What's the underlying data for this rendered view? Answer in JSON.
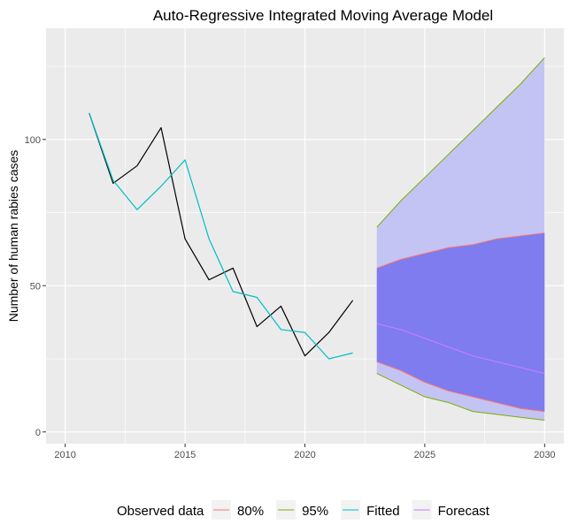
{
  "chart_data": {
    "type": "line",
    "title": "Auto-Regressive Integrated Moving Average Model",
    "xlabel": "",
    "ylabel": "Number of human rabies cases",
    "xlim": [
      2009.2,
      2030.8
    ],
    "ylim": [
      -4,
      138
    ],
    "x_ticks": [
      2010,
      2015,
      2020,
      2025,
      2030
    ],
    "y_ticks": [
      0,
      50,
      100
    ],
    "grid": true,
    "legend_position": "bottom",
    "legend_title": "Observed data",
    "legend_entries": [
      {
        "label": "80%",
        "color": "#f8766d"
      },
      {
        "label": "95%",
        "color": "#7cae00"
      },
      {
        "label": "Fitted",
        "color": "#00bfc4"
      },
      {
        "label": "Forecast",
        "color": "#c77cff"
      }
    ],
    "colors": {
      "observed": "#000000",
      "band95_fill": "#c3c3f4",
      "band80_fill": "#7e7cee",
      "band80_edge": "#f8766d",
      "band95_edge": "#7cae00",
      "fitted": "#00bfc4",
      "forecast": "#c77cff",
      "panel": "#ebebeb",
      "grid": "#ffffff"
    },
    "series": [
      {
        "name": "Observed data",
        "x": [
          2011,
          2012,
          2013,
          2014,
          2015,
          2016,
          2017,
          2018,
          2019,
          2020,
          2021,
          2022
        ],
        "values": [
          109,
          85,
          91,
          104,
          66,
          52,
          56,
          36,
          43,
          26,
          34,
          45
        ]
      },
      {
        "name": "Fitted",
        "x": [
          2011,
          2012,
          2013,
          2014,
          2015,
          2016,
          2017,
          2018,
          2019,
          2020,
          2021,
          2022
        ],
        "values": [
          109,
          86,
          76,
          84,
          93,
          66,
          48,
          46,
          35,
          34,
          25,
          27
        ]
      },
      {
        "name": "Forecast",
        "x": [
          2023,
          2024,
          2025,
          2026,
          2027,
          2028,
          2029,
          2030
        ],
        "values": [
          37,
          35,
          32,
          29,
          26,
          24,
          22,
          20
        ]
      },
      {
        "name": "80%",
        "x": [
          2023,
          2024,
          2025,
          2026,
          2027,
          2028,
          2029,
          2030
        ],
        "lower": [
          24,
          21,
          17,
          14,
          12,
          10,
          8,
          7
        ],
        "upper": [
          56,
          59,
          61,
          63,
          64,
          66,
          67,
          68
        ]
      },
      {
        "name": "95%",
        "x": [
          2023,
          2024,
          2025,
          2026,
          2027,
          2028,
          2029,
          2030
        ],
        "lower": [
          20,
          16,
          12,
          10,
          7,
          6,
          5,
          4
        ],
        "upper": [
          70,
          79,
          87,
          95,
          103,
          111,
          119,
          128
        ]
      }
    ]
  }
}
